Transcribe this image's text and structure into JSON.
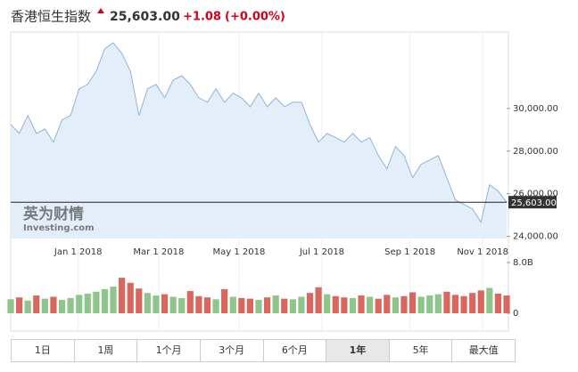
{
  "header": {
    "title": "香港恒生指数",
    "change": "+1.08",
    "change_pct": "(+0.00%)"
  },
  "last_price": {
    "value": 25603,
    "label": "25,603.00"
  },
  "watermark": [
    "英为财情",
    "Investing.com"
  ],
  "chart_data": [
    {
      "type": "line",
      "color": "#8fb3da",
      "fill": "#e4eef8",
      "values": [
        29250,
        28830,
        29670,
        28830,
        29040,
        28420,
        29460,
        29670,
        30920,
        31130,
        31750,
        32790,
        33080,
        32580,
        31750,
        29670,
        30920,
        31130,
        30500,
        31330,
        31540,
        31130,
        30500,
        30290,
        30920,
        30290,
        30710,
        30500,
        30080,
        30710,
        30080,
        30500,
        30080,
        30290,
        30290,
        29250,
        28420,
        28830,
        28630,
        28420,
        28830,
        28420,
        28630,
        27790,
        27170,
        28210,
        27790,
        26750,
        27380,
        27580,
        27790,
        26750,
        25710,
        25500,
        25290,
        24670,
        26420,
        26130,
        25603
      ],
      "xlim": [
        0,
        58
      ],
      "xticks": [
        {
          "value": 7.9,
          "label": "Jan 1 2018"
        },
        {
          "value": 17.3,
          "label": "Mar 1 2018"
        },
        {
          "value": 26.7,
          "label": "May 1 2018"
        },
        {
          "value": 36.4,
          "label": "Jul 1 2018"
        },
        {
          "value": 46.7,
          "label": "Sep 1 2018"
        },
        {
          "value": 55.2,
          "label": "Nov 1 2018"
        }
      ],
      "ylim": [
        23900,
        33500
      ],
      "yticks": [
        {
          "value": 24000,
          "label": "24,000.00"
        },
        {
          "value": 26000,
          "label": "26,000.00"
        },
        {
          "value": 28000,
          "label": "28,000.00"
        },
        {
          "value": 30000,
          "label": "30,000.00"
        }
      ],
      "grid": true
    },
    {
      "type": "bar",
      "up_color": "#8ec58a",
      "down_color": "#d9675d",
      "values": [
        2.2,
        2.5,
        2.0,
        2.8,
        2.3,
        2.6,
        2.1,
        2.4,
        2.9,
        3.1,
        3.4,
        3.8,
        4.2,
        5.6,
        4.8,
        3.9,
        3.2,
        2.8,
        3.0,
        2.6,
        2.4,
        3.5,
        2.7,
        2.5,
        2.2,
        3.8,
        2.6,
        2.4,
        2.3,
        2.1,
        2.5,
        2.8,
        2.3,
        2.2,
        2.6,
        3.2,
        4.1,
        3.0,
        2.7,
        2.5,
        2.4,
        2.8,
        2.6,
        2.3,
        2.9,
        2.5,
        2.7,
        3.3,
        2.6,
        2.8,
        3.0,
        3.4,
        2.9,
        2.7,
        3.2,
        3.6,
        4.0,
        3.1,
        2.8
      ],
      "xlim": [
        0,
        58
      ],
      "ylim": [
        0,
        8
      ],
      "yticks": [
        0,
        {
          "value": 8,
          "label": "8.0B"
        }
      ]
    }
  ],
  "range_buttons": {
    "labels": [
      "1日",
      "1周",
      "1个月",
      "3个月",
      "6个月",
      "1年",
      "5年",
      "最大值"
    ],
    "selected": 5
  }
}
